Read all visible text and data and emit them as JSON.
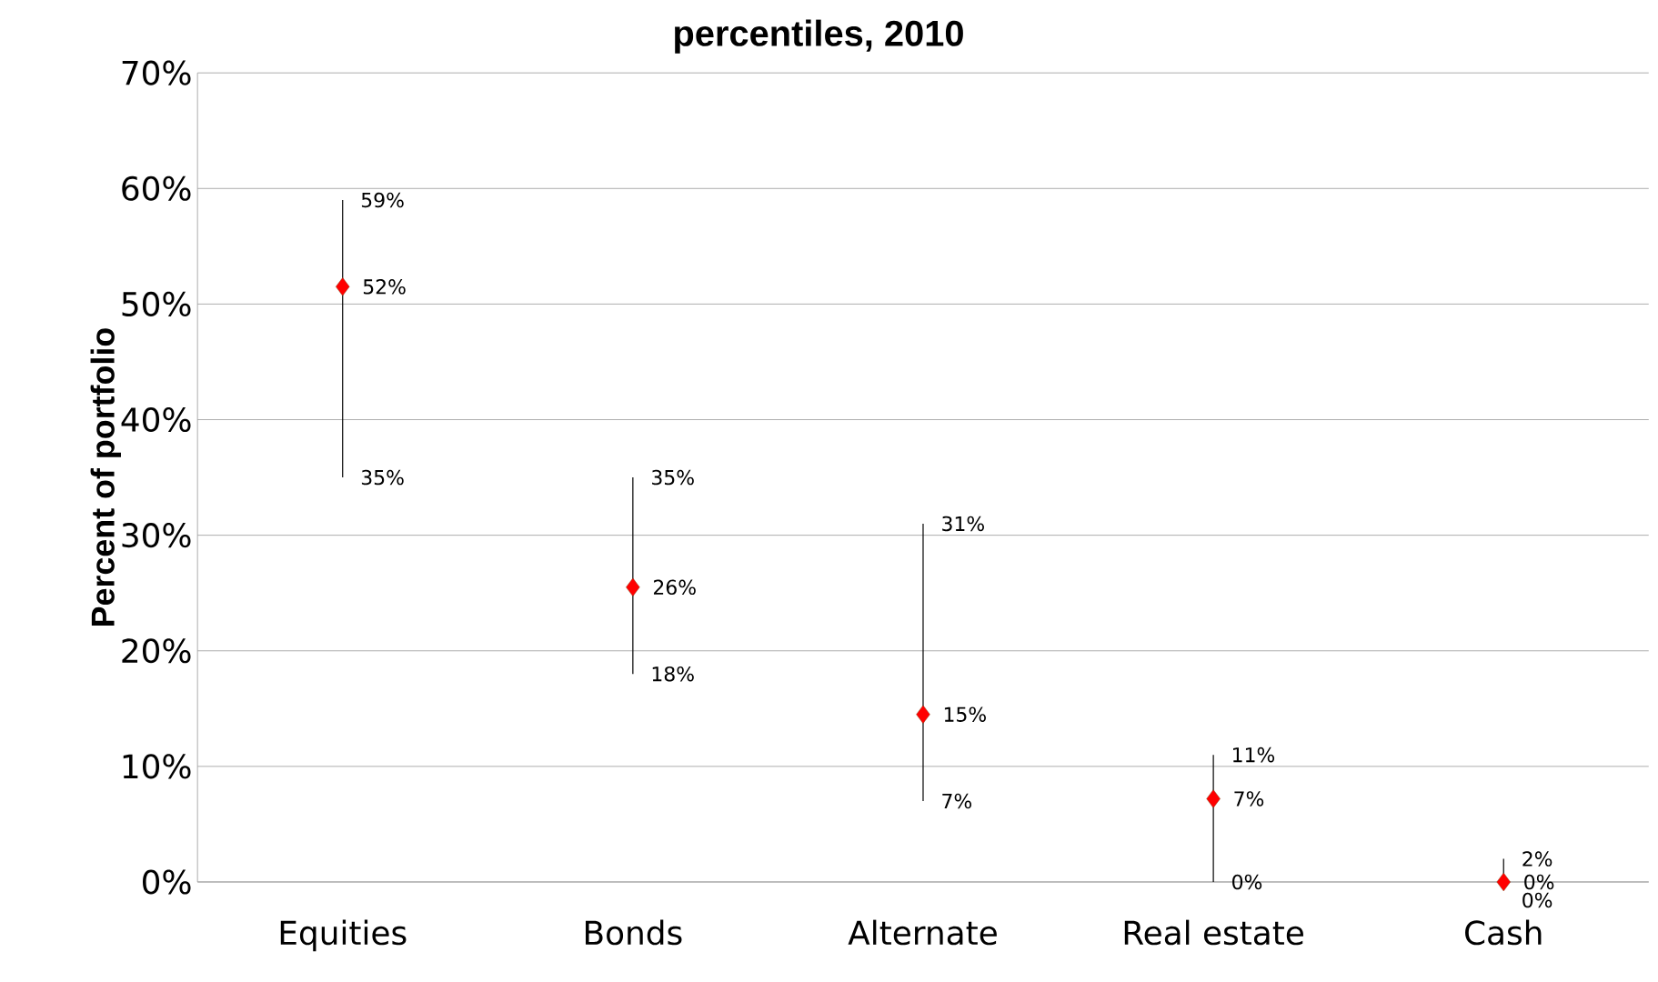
{
  "chart_data": {
    "type": "scatter",
    "title": "percentiles, 2010",
    "ylabel": "Percent of portfolio",
    "categories": [
      "Equities",
      "Bonds",
      "Alternate",
      "Real estate",
      "Cash"
    ],
    "series": [
      {
        "color": "#ff0000",
        "values": [
          51.5,
          25.5,
          14.5,
          7.2,
          0
        ],
        "errors": [
          [
            35,
            59
          ],
          [
            18,
            35
          ],
          [
            7,
            31
          ],
          [
            0,
            11
          ],
          [
            0,
            2
          ]
        ],
        "value_labels": [
          "52%",
          "26%",
          "15%",
          "7%",
          "0%"
        ]
      }
    ],
    "annotations": [
      {
        "text": "59%",
        "x": "Equities",
        "y": 59
      },
      {
        "text": "35%",
        "x": "Equities",
        "y": 35
      },
      {
        "text": "35%",
        "x": "Bonds",
        "y": 35
      },
      {
        "text": "18%",
        "x": "Bonds",
        "y": 18
      },
      {
        "text": "31%",
        "x": "Alternate",
        "y": 31
      },
      {
        "text": "7%",
        "x": "Alternate",
        "y": 7
      },
      {
        "text": "11%",
        "x": "Real estate",
        "y": 11
      },
      {
        "text": "0%",
        "x": "Real estate",
        "y": 0
      },
      {
        "text": "2%",
        "x": "Cash",
        "y": 2
      },
      {
        "text": "0%",
        "x": "Cash",
        "y": 0
      }
    ],
    "ylim": [
      0,
      70
    ],
    "yticks": [
      {
        "value": 0,
        "label": "0%"
      },
      {
        "value": 10,
        "label": "10%"
      },
      {
        "value": 20,
        "label": "20%"
      },
      {
        "value": 30,
        "label": "30%"
      },
      {
        "value": 40,
        "label": "40%"
      },
      {
        "value": 50,
        "label": "50%"
      },
      {
        "value": 60,
        "label": "60%"
      },
      {
        "value": 70,
        "label": "70%"
      }
    ],
    "grid": "y",
    "marker": "diamond"
  }
}
